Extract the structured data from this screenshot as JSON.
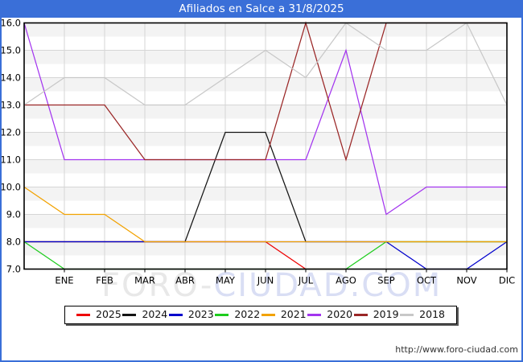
{
  "window": {
    "title": "Afiliados en Salce a 31/8/2025"
  },
  "watermark": {
    "left": "FORO-",
    "right": "CIUDAD.COM"
  },
  "footer": {
    "url": "http://www.foro-ciudad.com"
  },
  "colors": {
    "frame_blue": "#3a6fd8",
    "title_text": "#ffffff",
    "grid_line": "#d6d6d6",
    "band_gray": "#f3f3f3",
    "watermark_gray": "#e8e8e8",
    "watermark_blue": "#d9def4"
  },
  "chart_data": {
    "type": "line",
    "title": "Afiliados en Salce a 31/8/2025",
    "xlabel": "",
    "ylabel": "",
    "x_categories": [
      "ENE",
      "FEB",
      "MAR",
      "ABR",
      "MAY",
      "JUN",
      "JUL",
      "AGO",
      "SEP",
      "OCT",
      "NOV",
      "DIC"
    ],
    "y_tick_labels": [
      "16.0",
      "15.0",
      "14.0",
      "13.0",
      "12.0",
      "11.0",
      "10.0",
      "9.0",
      "8.0",
      "7.0"
    ],
    "ylim": [
      7,
      16
    ],
    "grid": true,
    "legend_position": "bottom",
    "note": "Each line begins at the y-axis with start_at_axis (previous December value), then one point per month ENE-DIC. 2025 ends at AGO.",
    "series": [
      {
        "name": "2025",
        "color": "#ee0000",
        "start_at_axis": 8,
        "monthly_values": [
          8,
          8,
          8,
          8,
          8,
          8,
          7,
          7
        ]
      },
      {
        "name": "2024",
        "color": "#141414",
        "start_at_axis": 8,
        "monthly_values": [
          8,
          8,
          8,
          8,
          12,
          12,
          8,
          8,
          8,
          8,
          8,
          8
        ]
      },
      {
        "name": "2023",
        "color": "#0000cc",
        "start_at_axis": 8,
        "monthly_values": [
          8,
          8,
          8,
          8,
          8,
          8,
          8,
          8,
          8,
          7,
          7,
          8
        ]
      },
      {
        "name": "2022",
        "color": "#1ecc1e",
        "start_at_axis": 8,
        "monthly_values": [
          7,
          7,
          7,
          7,
          7,
          7,
          7,
          7,
          8,
          8,
          8,
          8
        ]
      },
      {
        "name": "2021",
        "color": "#f2a200",
        "start_at_axis": 10,
        "monthly_values": [
          9,
          9,
          8,
          8,
          8,
          8,
          8,
          8,
          8,
          8,
          8,
          8
        ]
      },
      {
        "name": "2020",
        "color": "#a335ef",
        "start_at_axis": 16,
        "monthly_values": [
          11,
          11,
          11,
          11,
          11,
          11,
          11,
          15,
          9,
          10,
          10,
          10
        ]
      },
      {
        "name": "2019",
        "color": "#9a2626",
        "start_at_axis": 13,
        "monthly_values": [
          13,
          13,
          11,
          11,
          11,
          11,
          16,
          11,
          16,
          16,
          16,
          16
        ]
      },
      {
        "name": "2018",
        "color": "#c8c8c8",
        "start_at_axis": 13,
        "monthly_values": [
          14,
          14,
          13,
          13,
          14,
          15,
          14,
          16,
          15,
          15,
          16,
          13
        ]
      }
    ]
  }
}
